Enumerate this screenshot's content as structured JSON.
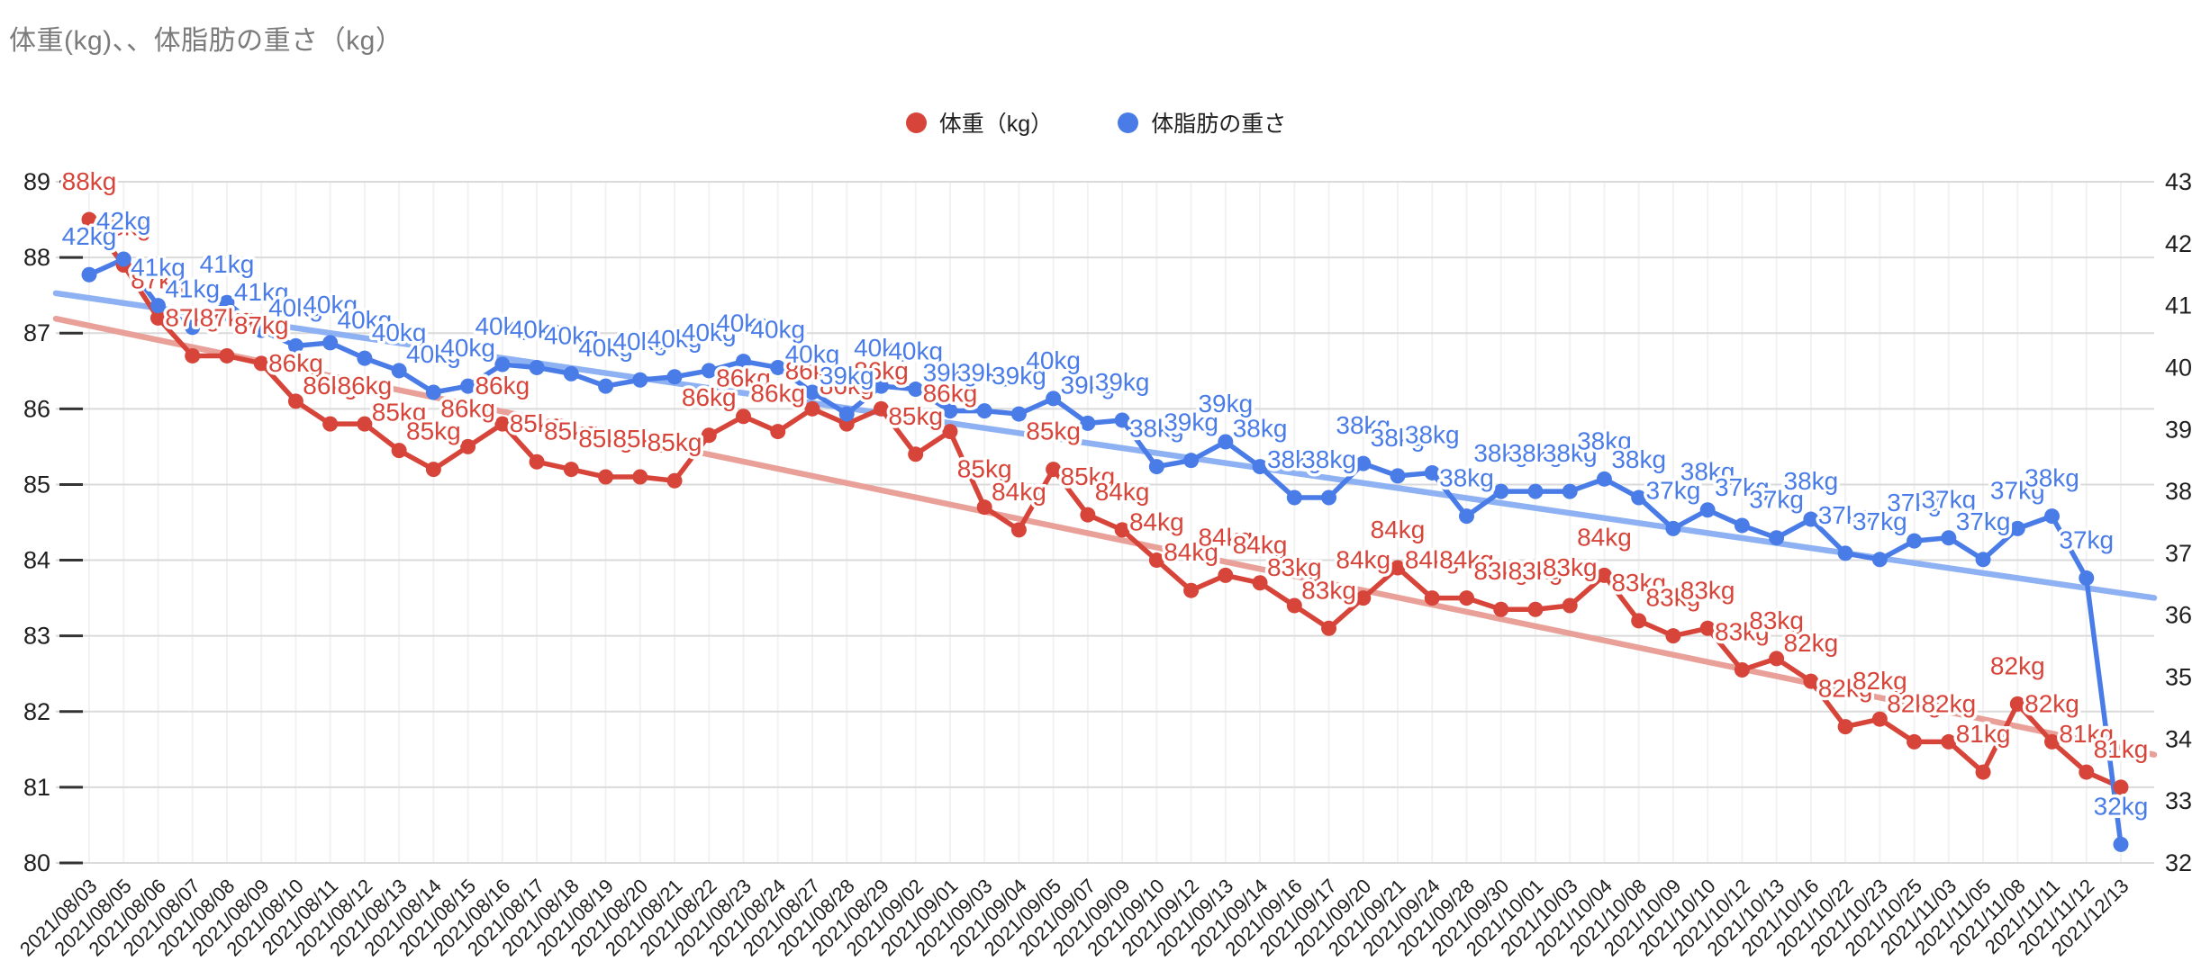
{
  "title": "体重(kg)、、体脂肪の重さ（kg）",
  "legend": [
    {
      "label": "体重（kg）",
      "color": "#d7453a"
    },
    {
      "label": "体脂肪の重さ",
      "color": "#4a7ce8"
    }
  ],
  "chart_data": {
    "type": "line",
    "title": "体重(kg)、、体脂肪の重さ（kg）",
    "legend_position": "top",
    "grid": true,
    "categories": [
      "2021/08/03",
      "2021/08/05",
      "2021/08/06",
      "2021/08/07",
      "2021/08/08",
      "2021/08/09",
      "2021/08/10",
      "2021/08/11",
      "2021/08/12",
      "2021/08/13",
      "2021/08/14",
      "2021/08/15",
      "2021/08/16",
      "2021/08/17",
      "2021/08/18",
      "2021/08/19",
      "2021/08/20",
      "2021/08/21",
      "2021/08/22",
      "2021/08/23",
      "2021/08/24",
      "2021/08/27",
      "2021/08/28",
      "2021/08/29",
      "2021/09/02",
      "2021/09/01",
      "2021/09/03",
      "2021/09/04",
      "2021/09/05",
      "2021/09/07",
      "2021/09/09",
      "2021/09/10",
      "2021/09/12",
      "2021/09/13",
      "2021/09/14",
      "2021/09/16",
      "2021/09/17",
      "2021/09/20",
      "2021/09/21",
      "2021/09/24",
      "2021/09/28",
      "2021/09/30",
      "2021/10/01",
      "2021/10/03",
      "2021/10/04",
      "2021/10/08",
      "2021/10/09",
      "2021/10/10",
      "2021/10/12",
      "2021/10/13",
      "2021/10/16",
      "2021/10/22",
      "2021/10/23",
      "2021/10/25",
      "2021/11/03",
      "2021/11/05",
      "2021/11/08",
      "2021/11/11",
      "2021/11/12",
      "2021/12/13"
    ],
    "left_axis": {
      "min": 80,
      "max": 89,
      "ticks": [
        89,
        88,
        87,
        86,
        85,
        84,
        83,
        82,
        81,
        80
      ]
    },
    "right_axis": {
      "min": 32,
      "max": 43,
      "ticks": [
        43,
        42,
        41,
        40,
        39,
        38,
        37,
        36,
        35,
        34,
        33,
        32
      ]
    },
    "series": [
      {
        "name": "体重（kg）",
        "axis": "left",
        "color": "#d7453a",
        "trend_color": "#e9a099",
        "values": [
          88.5,
          87.9,
          87.2,
          86.7,
          86.7,
          86.6,
          86.1,
          85.8,
          85.8,
          85.45,
          85.2,
          85.5,
          85.8,
          85.3,
          85.2,
          85.1,
          85.1,
          85.05,
          85.65,
          85.9,
          85.7,
          86.0,
          85.8,
          86.0,
          85.4,
          85.7,
          84.7,
          84.4,
          85.2,
          84.6,
          84.4,
          84.0,
          83.6,
          83.8,
          83.7,
          83.4,
          83.1,
          83.5,
          83.9,
          83.5,
          83.5,
          83.35,
          83.35,
          83.4,
          83.8,
          83.2,
          83.0,
          83.1,
          82.55,
          82.7,
          82.4,
          81.8,
          81.9,
          81.6,
          81.6,
          81.2,
          82.1,
          81.6,
          81.2,
          81.0
        ],
        "labels": [
          "88kg",
          "88kg",
          "87kg",
          "87kg",
          "87kg",
          "87kg",
          "86kg",
          "86kg",
          "86kg",
          "85kg",
          "85kg",
          "86kg",
          "86kg",
          "85kg",
          "85kg",
          "85kg",
          "85kg",
          "85kg",
          "86kg",
          "86kg",
          "86kg",
          "86kg",
          "86kg",
          "86kg",
          "85kg",
          "86kg",
          "85kg",
          "84kg",
          "85kg",
          "85kg",
          "84kg",
          "84kg",
          "84kg",
          "84kg",
          "84kg",
          "83kg",
          "83kg",
          "84kg",
          "84kg",
          "84kg",
          "84kg",
          "83kg",
          "83kg",
          "83kg",
          "84kg",
          "83kg",
          "83kg",
          "83kg",
          "83kg",
          "83kg",
          "82kg",
          "82kg",
          "82kg",
          "82kg",
          "82kg",
          "81kg",
          "82kg",
          "82kg",
          "81kg",
          "81kg"
        ],
        "trendline": {
          "start": 87.19,
          "end": 81.43
        }
      },
      {
        "name": "体脂肪の重さ",
        "axis": "right",
        "color": "#4a7ce8",
        "trend_color": "#8db1f2",
        "values": [
          41.5,
          41.75,
          41.0,
          40.65,
          41.05,
          40.6,
          40.35,
          40.4,
          40.15,
          39.95,
          39.6,
          39.7,
          40.05,
          40.0,
          39.9,
          39.7,
          39.8,
          39.85,
          39.95,
          40.1,
          40.0,
          39.6,
          39.25,
          39.7,
          39.65,
          39.3,
          39.3,
          39.25,
          39.5,
          39.1,
          39.15,
          38.4,
          38.5,
          38.8,
          38.4,
          37.9,
          37.9,
          38.45,
          38.25,
          38.3,
          37.6,
          38.0,
          38.0,
          38.0,
          38.2,
          37.9,
          37.4,
          37.7,
          37.45,
          37.25,
          37.55,
          37.0,
          36.9,
          37.2,
          37.25,
          36.9,
          37.4,
          37.6,
          36.6,
          32.3
        ],
        "labels": [
          "42kg",
          "42kg",
          "41kg",
          "41kg",
          "41kg",
          "41kg",
          "40kg",
          "40kg",
          "40kg",
          "40kg",
          "40kg",
          "40kg",
          "40kg",
          "40kg",
          "40kg",
          "40kg",
          "40kg",
          "40kg",
          "40kg",
          "40kg",
          "40kg",
          "40kg",
          "39kg",
          "40kg",
          "40kg",
          "39kg",
          "39kg",
          "39kg",
          "40kg",
          "39kg",
          "39kg",
          "38kg",
          "39kg",
          "39kg",
          "38kg",
          "38kg",
          "38kg",
          "38kg",
          "38kg",
          "38kg",
          "38kg",
          "38kg",
          "38kg",
          "38kg",
          "38kg",
          "38kg",
          "37kg",
          "38kg",
          "37kg",
          "37kg",
          "38kg",
          "37kg",
          "37kg",
          "37kg",
          "37kg",
          "37kg",
          "37kg",
          "38kg",
          "37kg",
          "32kg"
        ]
      }
    ],
    "colors": {
      "gridline": "#dadada",
      "vertical_gridline": "#f2f2f2",
      "axis_text": "#1f1f1f",
      "tick": "#333333",
      "title_text": "#7b7b7b"
    }
  }
}
